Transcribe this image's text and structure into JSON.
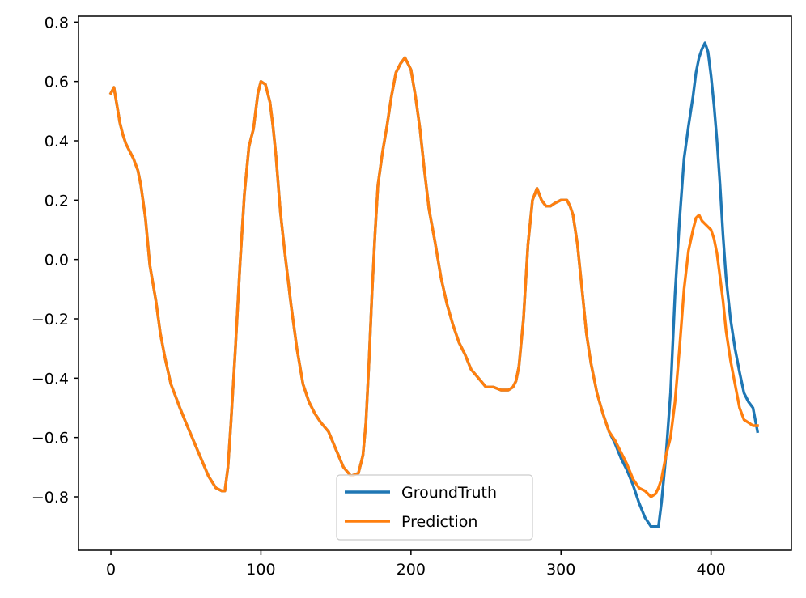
{
  "chart_data": {
    "type": "line",
    "title": "",
    "xlabel": "",
    "ylabel": "",
    "xlim": [
      -21.6,
      453.6
    ],
    "ylim": [
      -0.98,
      0.82
    ],
    "xticks": [
      0,
      100,
      200,
      300,
      400
    ],
    "xtick_labels": [
      "0",
      "100",
      "200",
      "300",
      "400"
    ],
    "yticks": [
      -0.8,
      -0.6,
      -0.4,
      -0.2,
      0.0,
      0.2,
      0.4,
      0.6,
      0.8
    ],
    "ytick_labels": [
      "−0.8",
      "−0.6",
      "−0.4",
      "−0.2",
      "0.0",
      "0.2",
      "0.4",
      "0.6",
      "0.8"
    ],
    "grid": false,
    "legend_position": "bottom-center",
    "series": [
      {
        "name": "GroundTruth",
        "color": "#1f77b4",
        "x": [
          0,
          2,
          4,
          6,
          8,
          10,
          12,
          15,
          18,
          20,
          23,
          26,
          30,
          33,
          36,
          40,
          43,
          46,
          50,
          55,
          60,
          65,
          70,
          74,
          76,
          78,
          80,
          83,
          86,
          89,
          92,
          95,
          98,
          100,
          103,
          106,
          108,
          110,
          113,
          116,
          120,
          124,
          128,
          132,
          136,
          140,
          145,
          150,
          155,
          160,
          165,
          168,
          170,
          172,
          174,
          176,
          178,
          181,
          184,
          187,
          190,
          193,
          196,
          200,
          203,
          206,
          209,
          212,
          216,
          220,
          224,
          228,
          232,
          236,
          240,
          245,
          250,
          255,
          260,
          265,
          268,
          270,
          272,
          275,
          278,
          281,
          284,
          287,
          290,
          293,
          296,
          300,
          304,
          306,
          308,
          311,
          314,
          317,
          320,
          324,
          328,
          332,
          336,
          340,
          344,
          348,
          352,
          356,
          360,
          363,
          365,
          367,
          370,
          373,
          376,
          379,
          382,
          385,
          388,
          390,
          392,
          394,
          396,
          398,
          400,
          402,
          404,
          406,
          408,
          410,
          413,
          416,
          419,
          422,
          425,
          428,
          431
        ],
        "values": [
          0.56,
          0.58,
          0.52,
          0.46,
          0.42,
          0.39,
          0.37,
          0.34,
          0.3,
          0.25,
          0.14,
          -0.02,
          -0.14,
          -0.25,
          -0.33,
          -0.42,
          -0.46,
          -0.5,
          -0.55,
          -0.61,
          -0.67,
          -0.73,
          -0.77,
          -0.78,
          -0.78,
          -0.7,
          -0.55,
          -0.3,
          -0.02,
          0.22,
          0.38,
          0.44,
          0.56,
          0.6,
          0.59,
          0.53,
          0.45,
          0.35,
          0.16,
          0.02,
          -0.15,
          -0.3,
          -0.42,
          -0.48,
          -0.52,
          -0.55,
          -0.58,
          -0.64,
          -0.7,
          -0.73,
          -0.72,
          -0.66,
          -0.55,
          -0.35,
          -0.12,
          0.08,
          0.25,
          0.36,
          0.45,
          0.55,
          0.63,
          0.66,
          0.68,
          0.64,
          0.55,
          0.44,
          0.3,
          0.17,
          0.06,
          -0.06,
          -0.15,
          -0.22,
          -0.28,
          -0.32,
          -0.37,
          -0.4,
          -0.43,
          -0.43,
          -0.44,
          -0.44,
          -0.43,
          -0.41,
          -0.36,
          -0.2,
          0.05,
          0.2,
          0.24,
          0.2,
          0.18,
          0.18,
          0.19,
          0.2,
          0.2,
          0.18,
          0.15,
          0.05,
          -0.1,
          -0.25,
          -0.35,
          -0.45,
          -0.52,
          -0.58,
          -0.62,
          -0.67,
          -0.71,
          -0.76,
          -0.82,
          -0.87,
          -0.9,
          -0.9,
          -0.9,
          -0.82,
          -0.66,
          -0.45,
          -0.12,
          0.13,
          0.34,
          0.45,
          0.55,
          0.63,
          0.68,
          0.71,
          0.73,
          0.7,
          0.62,
          0.52,
          0.4,
          0.25,
          0.08,
          -0.06,
          -0.2,
          -0.3,
          -0.38,
          -0.45,
          -0.48,
          -0.5,
          -0.58
        ]
      },
      {
        "name": "Prediction",
        "color": "#ff7f0e",
        "x": [
          0,
          2,
          4,
          6,
          8,
          10,
          12,
          15,
          18,
          20,
          23,
          26,
          30,
          33,
          36,
          40,
          43,
          46,
          50,
          55,
          60,
          65,
          70,
          74,
          76,
          78,
          80,
          83,
          86,
          89,
          92,
          95,
          98,
          100,
          103,
          106,
          108,
          110,
          113,
          116,
          120,
          124,
          128,
          132,
          136,
          140,
          145,
          150,
          155,
          160,
          165,
          168,
          170,
          172,
          174,
          176,
          178,
          181,
          184,
          187,
          190,
          193,
          196,
          200,
          203,
          206,
          209,
          212,
          216,
          220,
          224,
          228,
          232,
          236,
          240,
          245,
          250,
          255,
          260,
          265,
          268,
          270,
          272,
          275,
          278,
          281,
          284,
          287,
          290,
          293,
          296,
          300,
          304,
          306,
          308,
          311,
          314,
          317,
          320,
          324,
          328,
          332,
          336,
          340,
          344,
          348,
          352,
          356,
          360,
          363,
          365,
          367,
          370,
          373,
          376,
          379,
          382,
          385,
          388,
          390,
          392,
          394,
          396,
          398,
          400,
          402,
          404,
          406,
          408,
          410,
          413,
          416,
          419,
          422,
          425,
          428,
          431
        ],
        "values": [
          0.56,
          0.58,
          0.52,
          0.46,
          0.42,
          0.39,
          0.37,
          0.34,
          0.3,
          0.25,
          0.14,
          -0.02,
          -0.14,
          -0.25,
          -0.33,
          -0.42,
          -0.46,
          -0.5,
          -0.55,
          -0.61,
          -0.67,
          -0.73,
          -0.77,
          -0.78,
          -0.78,
          -0.7,
          -0.55,
          -0.3,
          -0.02,
          0.22,
          0.38,
          0.44,
          0.56,
          0.6,
          0.59,
          0.53,
          0.45,
          0.35,
          0.16,
          0.02,
          -0.15,
          -0.3,
          -0.42,
          -0.48,
          -0.52,
          -0.55,
          -0.58,
          -0.64,
          -0.7,
          -0.73,
          -0.72,
          -0.66,
          -0.55,
          -0.35,
          -0.12,
          0.08,
          0.25,
          0.36,
          0.45,
          0.55,
          0.63,
          0.66,
          0.68,
          0.64,
          0.55,
          0.44,
          0.3,
          0.17,
          0.06,
          -0.06,
          -0.15,
          -0.22,
          -0.28,
          -0.32,
          -0.37,
          -0.4,
          -0.43,
          -0.43,
          -0.44,
          -0.44,
          -0.43,
          -0.41,
          -0.36,
          -0.2,
          0.05,
          0.2,
          0.24,
          0.2,
          0.18,
          0.18,
          0.19,
          0.2,
          0.2,
          0.18,
          0.15,
          0.05,
          -0.1,
          -0.25,
          -0.35,
          -0.45,
          -0.52,
          -0.58,
          -0.61,
          -0.65,
          -0.69,
          -0.74,
          -0.77,
          -0.78,
          -0.8,
          -0.79,
          -0.77,
          -0.74,
          -0.66,
          -0.6,
          -0.48,
          -0.3,
          -0.1,
          0.03,
          0.1,
          0.14,
          0.15,
          0.13,
          0.12,
          0.11,
          0.1,
          0.07,
          0.02,
          -0.06,
          -0.14,
          -0.24,
          -0.34,
          -0.42,
          -0.5,
          -0.54,
          -0.55,
          -0.56,
          -0.56
        ]
      }
    ]
  }
}
